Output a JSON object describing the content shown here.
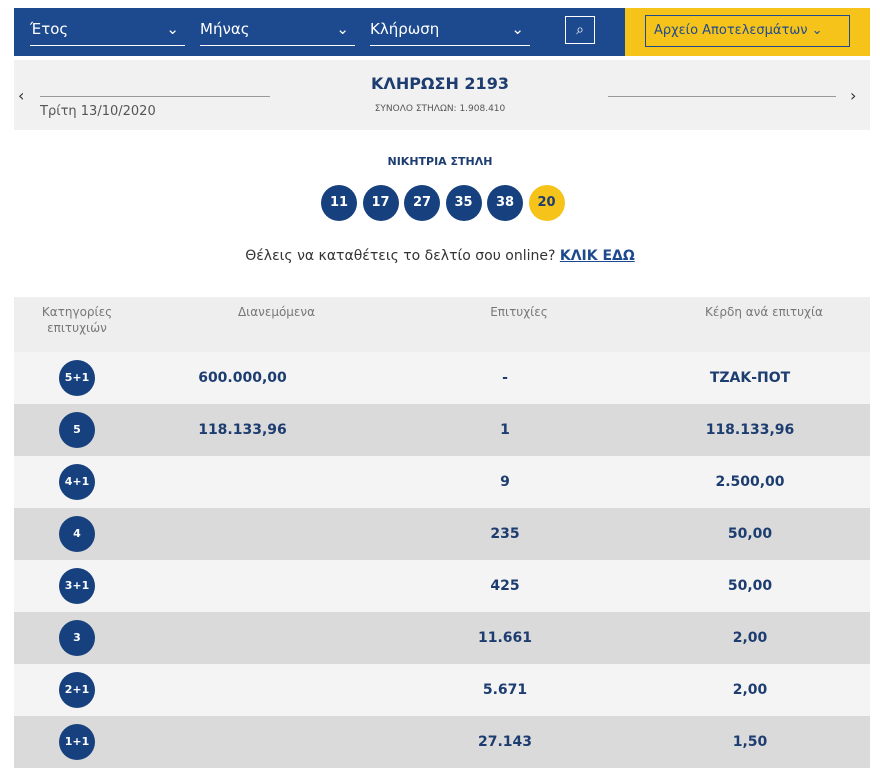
{
  "filters": {
    "year": "Έτος",
    "month": "Μήνας",
    "draw": "Κλήρωση",
    "archive": "Αρχείο Αποτελεσμάτων"
  },
  "draw_header": {
    "title": "ΚΛΗΡΩΣΗ 2193",
    "total_columns": "ΣΥΝΟΛΟ ΣΤΗΛΩΝ: 1.908.410",
    "date": "Τρίτη 13/10/2020"
  },
  "winning": {
    "label": "ΝΙΚΗΤΡΙΑ ΣΤΗΛΗ",
    "numbers": [
      "11",
      "17",
      "27",
      "35",
      "38"
    ],
    "joker": "20"
  },
  "promo": {
    "text": "Θέλεις να καταθέτεις το δελτίο σου online?",
    "link": "ΚΛΙΚ ΕΔΩ"
  },
  "table": {
    "headers": [
      "Κατηγορίες επιτυχιών",
      "Διανεμόμενα",
      "Επιτυχίες",
      "Κέρδη ανά επιτυχία"
    ],
    "rows": [
      {
        "category": "5+1",
        "distributed": "600.000,00",
        "winners": "-",
        "prize": "ΤΖΑΚ-ΠΟΤ"
      },
      {
        "category": "5",
        "distributed": "118.133,96",
        "winners": "1",
        "prize": "118.133,96"
      },
      {
        "category": "4+1",
        "winners": "9",
        "prize": "2.500,00"
      },
      {
        "category": "4",
        "winners": "235",
        "prize": "50,00"
      },
      {
        "category": "3+1",
        "winners": "425",
        "prize": "50,00"
      },
      {
        "category": "3",
        "winners": "11.661",
        "prize": "2,00"
      },
      {
        "category": "2+1",
        "winners": "5.671",
        "prize": "2,00"
      },
      {
        "category": "1+1",
        "winners": "27.143",
        "prize": "1,50"
      }
    ]
  }
}
